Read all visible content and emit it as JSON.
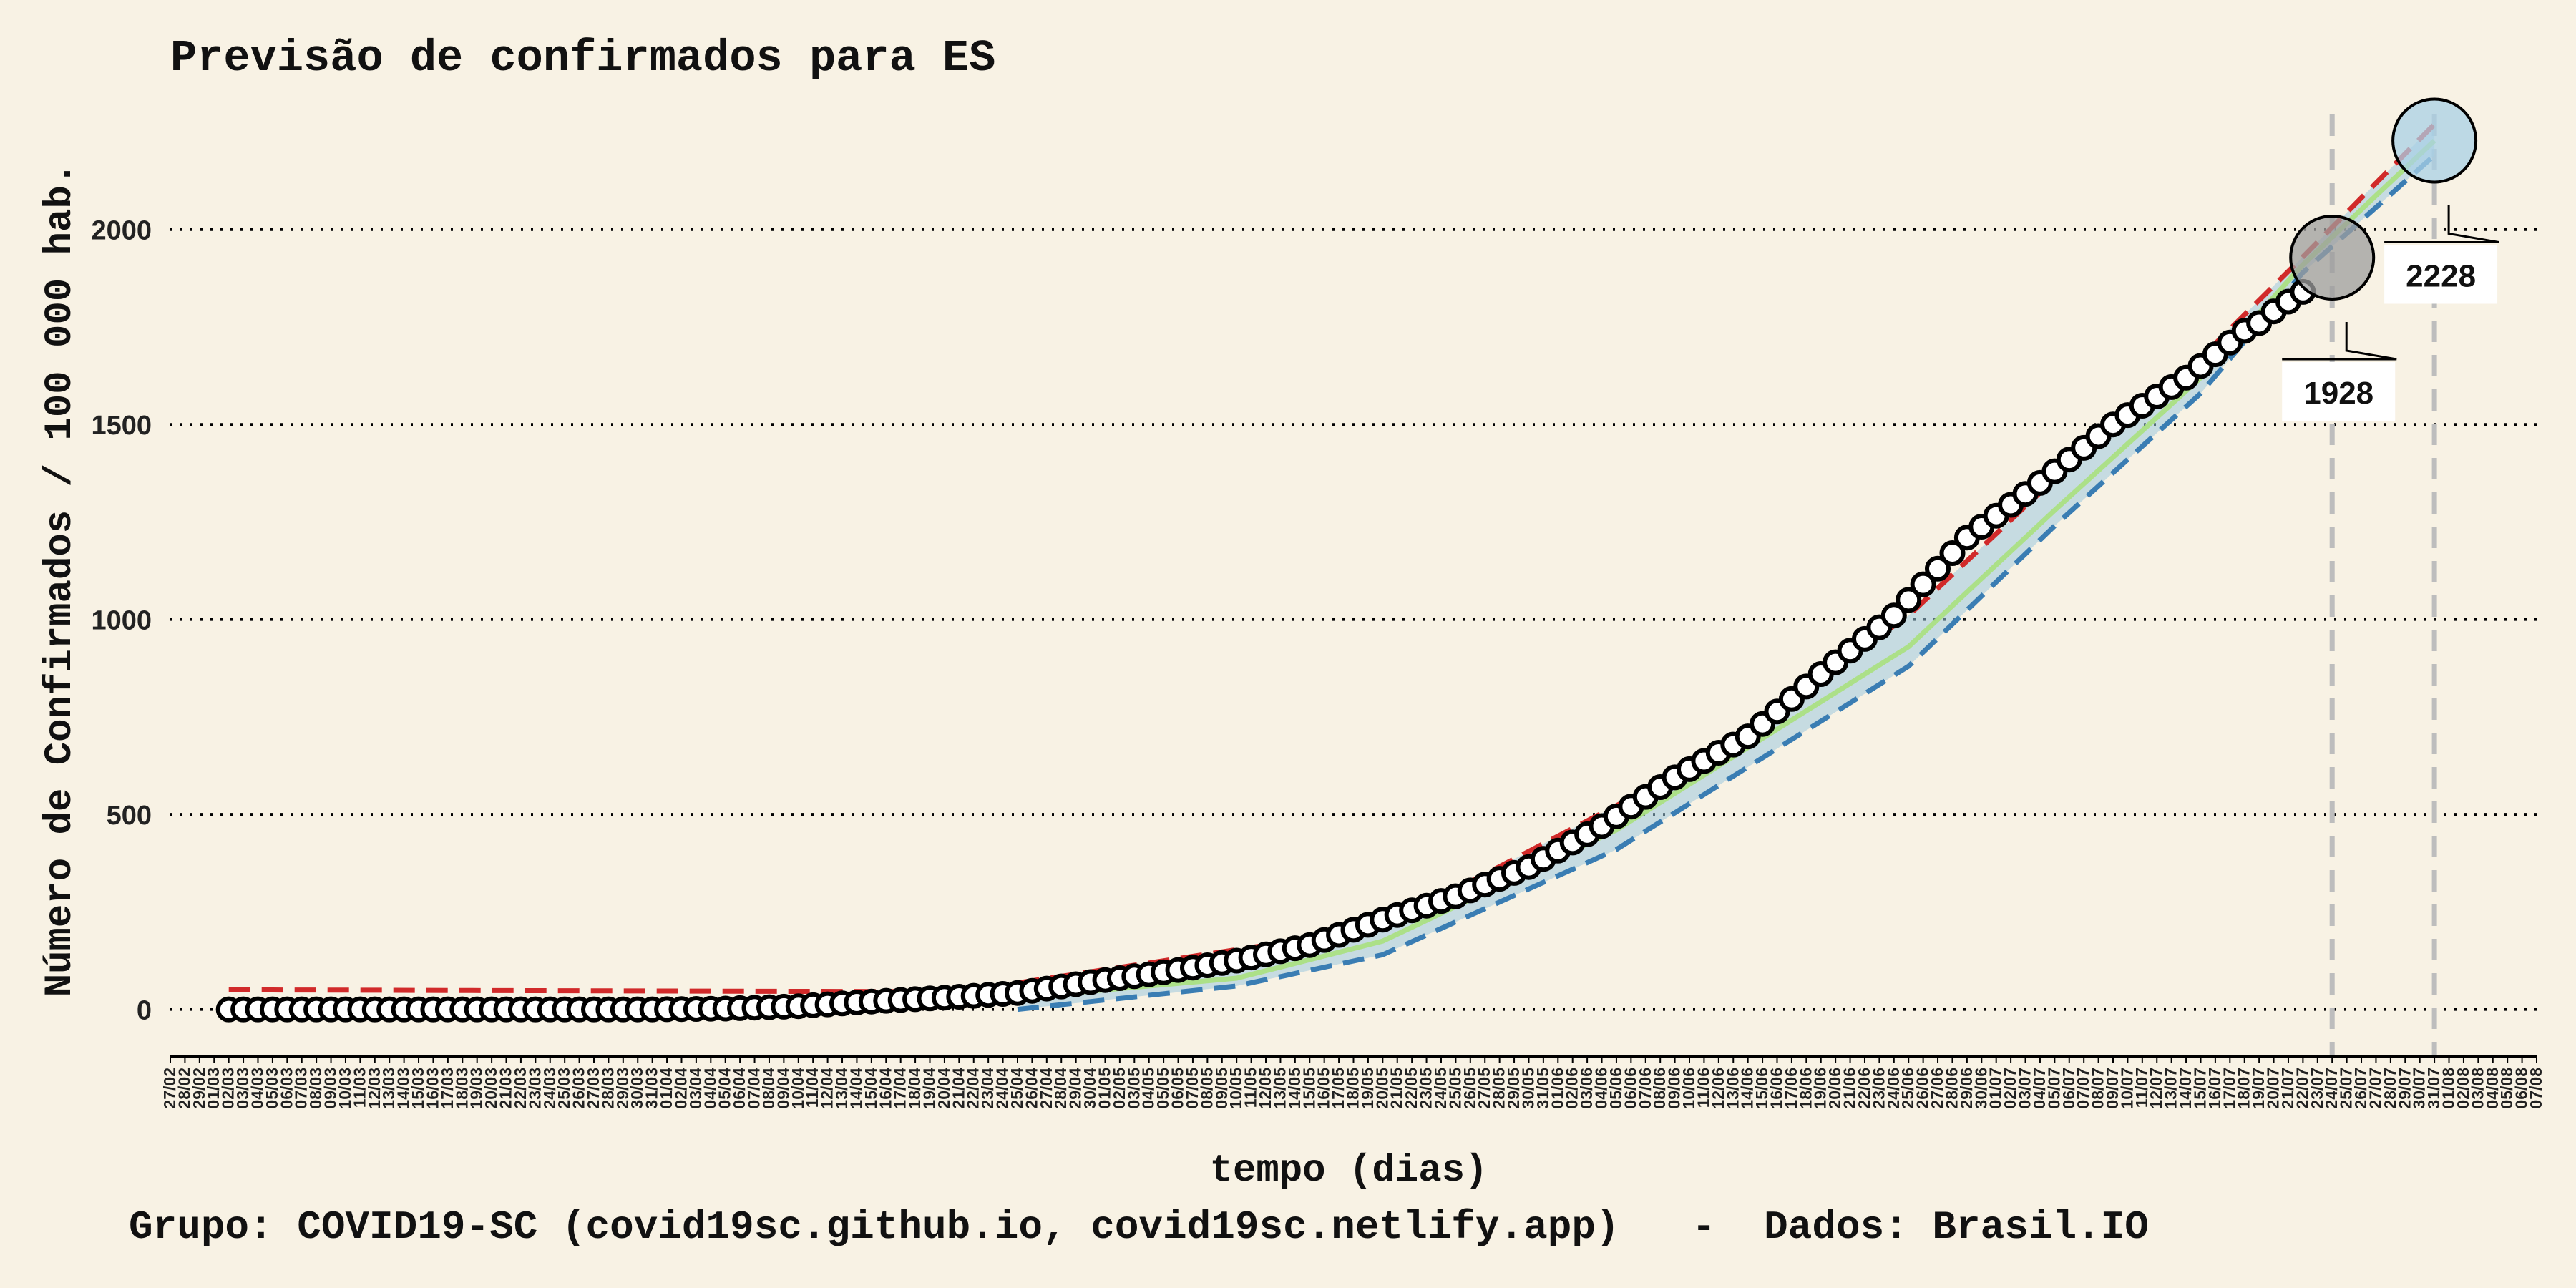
{
  "chart_data": {
    "type": "line",
    "title": "Previsão de confirmados para ES",
    "xlabel": "tempo (dias)",
    "ylabel": "Número de Confirmados / 100 000 hab.",
    "caption": "Grupo: COVID19-SC (covid19sc.github.io, covid19sc.netlify.app)   -  Dados: Brasil.IO",
    "ylim": [
      -120,
      2350
    ],
    "yticks": [
      0,
      500,
      1000,
      1500,
      2000
    ],
    "grid": "horizontal-dotted",
    "x_start_date": "2020-02-27",
    "x_end_date": "2020-08-07",
    "x_tick_labels": [
      "27/02",
      "28/02",
      "29/02",
      "01/03",
      "02/03",
      "03/03",
      "04/03",
      "05/03",
      "06/03",
      "07/03",
      "08/03",
      "09/03",
      "10/03",
      "11/03",
      "12/03",
      "13/03",
      "14/03",
      "15/03",
      "16/03",
      "17/03",
      "18/03",
      "19/03",
      "20/03",
      "21/03",
      "22/03",
      "23/03",
      "24/03",
      "25/03",
      "26/03",
      "27/03",
      "28/03",
      "29/03",
      "30/03",
      "31/03",
      "01/04",
      "02/04",
      "03/04",
      "04/04",
      "05/04",
      "06/04",
      "07/04",
      "08/04",
      "09/04",
      "10/04",
      "11/04",
      "12/04",
      "13/04",
      "14/04",
      "15/04",
      "16/04",
      "17/04",
      "18/04",
      "19/04",
      "20/04",
      "21/04",
      "22/04",
      "23/04",
      "24/04",
      "25/04",
      "26/04",
      "27/04",
      "28/04",
      "29/04",
      "30/04",
      "01/05",
      "02/05",
      "03/05",
      "04/05",
      "05/05",
      "06/05",
      "07/05",
      "08/05",
      "09/05",
      "10/05",
      "11/05",
      "12/05",
      "13/05",
      "14/05",
      "15/05",
      "16/05",
      "17/05",
      "18/05",
      "19/05",
      "20/05",
      "21/05",
      "22/05",
      "23/05",
      "24/05",
      "25/05",
      "26/05",
      "27/05",
      "28/05",
      "29/05",
      "30/05",
      "31/05",
      "01/06",
      "02/06",
      "03/06",
      "04/06",
      "05/06",
      "06/06",
      "07/06",
      "08/06",
      "09/06",
      "10/06",
      "11/06",
      "12/06",
      "13/06",
      "14/06",
      "15/06",
      "16/06",
      "17/06",
      "18/06",
      "19/06",
      "20/06",
      "21/06",
      "22/06",
      "23/06",
      "24/06",
      "25/06",
      "26/06",
      "27/06",
      "28/06",
      "29/06",
      "30/06",
      "01/07",
      "02/07",
      "03/07",
      "04/07",
      "05/07",
      "06/07",
      "07/07",
      "08/07",
      "09/07",
      "10/07",
      "11/07",
      "12/07",
      "13/07",
      "14/07",
      "15/07",
      "16/07",
      "17/07",
      "18/07",
      "19/07",
      "20/07",
      "21/07",
      "22/07",
      "23/07",
      "24/07",
      "25/07",
      "26/07",
      "27/07",
      "28/07",
      "29/07",
      "30/07",
      "31/07",
      "01/08",
      "02/08",
      "03/08",
      "04/08",
      "05/08",
      "06/08",
      "07/08"
    ],
    "observed": {
      "name": "Confirmados",
      "x": [
        "2020-03-02",
        "2020-03-15",
        "2020-03-31",
        "2020-04-05",
        "2020-04-10",
        "2020-04-15",
        "2020-04-20",
        "2020-04-25",
        "2020-04-30",
        "2020-05-05",
        "2020-05-10",
        "2020-05-15",
        "2020-05-20",
        "2020-05-25",
        "2020-05-30",
        "2020-06-04",
        "2020-06-09",
        "2020-06-14",
        "2020-06-19",
        "2020-06-24",
        "2020-06-29",
        "2020-07-04",
        "2020-07-09",
        "2020-07-14",
        "2020-07-18",
        "2020-07-19",
        "2020-07-20",
        "2020-07-21",
        "2020-07-22"
      ],
      "y": [
        0,
        0,
        0,
        2,
        8,
        20,
        30,
        42,
        70,
        95,
        125,
        165,
        230,
        290,
        365,
        470,
        595,
        700,
        860,
        1010,
        1210,
        1350,
        1500,
        1620,
        1740,
        1760,
        1790,
        1815,
        1840
      ]
    },
    "forecast_upper": {
      "x": [
        "2020-03-02",
        "2020-04-21",
        "2020-05-20",
        "2020-06-10",
        "2020-06-25",
        "2020-07-05",
        "2020-07-15",
        "2020-07-22",
        "2020-07-31"
      ],
      "y": [
        50,
        45,
        210,
        620,
        1010,
        1360,
        1670,
        1930,
        2270
      ]
    },
    "forecast_lower": {
      "x": [
        "2020-04-25",
        "2020-05-10",
        "2020-05-20",
        "2020-06-05",
        "2020-06-25",
        "2020-07-05",
        "2020-07-15",
        "2020-07-22",
        "2020-07-31"
      ],
      "y": [
        0,
        60,
        140,
        410,
        880,
        1240,
        1580,
        1890,
        2190
      ]
    },
    "forecast_mid": {
      "x": [
        "2020-04-25",
        "2020-05-10",
        "2020-05-20",
        "2020-06-05",
        "2020-06-25",
        "2020-07-05",
        "2020-07-15",
        "2020-07-22",
        "2020-07-31"
      ],
      "y": [
        30,
        80,
        175,
        460,
        930,
        1280,
        1620,
        1910,
        2228
      ]
    },
    "vertical_lines": [
      "2020-07-24",
      "2020-07-31"
    ],
    "annotations": [
      {
        "x": "2020-07-24",
        "y": 1928,
        "label": "1928",
        "color": "#9e9e9e"
      },
      {
        "x": "2020-07-31",
        "y": 2228,
        "label": "2228",
        "color": "#a9d0e6"
      }
    ],
    "colors": {
      "background": "#f8f2e4",
      "upper": "#d12a2a",
      "lower": "#3a7db3",
      "band": "#9cc8de",
      "mid": "#a8e07e",
      "marker_edge": "#000000",
      "marker_fill": "#ffffff",
      "vline": "#bdbdbd"
    }
  }
}
